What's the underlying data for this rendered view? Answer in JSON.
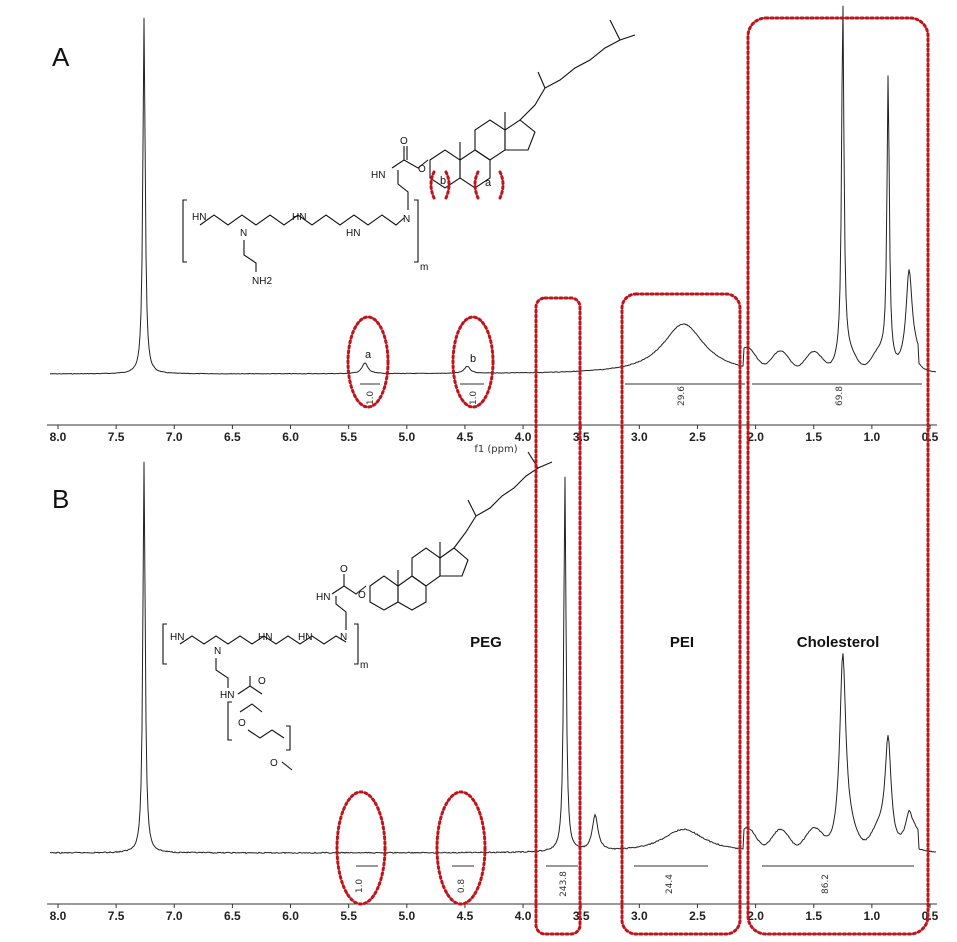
{
  "panels": [
    {
      "letter": "A",
      "axis_title": "f1 (ppm)",
      "integrals": [
        "1.0",
        "1.0",
        "29.6",
        "69.8"
      ],
      "peak_letters": [
        "a",
        "b"
      ],
      "structure_text": [
        "HN",
        "N",
        "HN",
        "HN",
        "N",
        "O",
        "O",
        "HN",
        "NH2",
        "m",
        "a",
        "b"
      ]
    },
    {
      "letter": "B",
      "integrals": [
        "1.0",
        "0.8",
        "243.8",
        "24.4",
        "86.2"
      ],
      "region_labels": [
        "PEG",
        "PEI",
        "Cholesterol"
      ],
      "structure_text": [
        "HN",
        "N",
        "HN",
        "HN",
        "N",
        "O",
        "O",
        "HN",
        "O",
        "O",
        "O",
        "HN",
        "m"
      ]
    }
  ],
  "colors": {
    "highlight": "#c0141a",
    "trace": "#222222"
  },
  "chart_data": [
    {
      "type": "line",
      "title": "",
      "xlabel": "f1 (ppm)",
      "ylabel": "",
      "xlim": [
        8.0,
        0.5
      ],
      "x_reversed": true,
      "ticks": [
        "8.0",
        "7.5",
        "7.0",
        "6.5",
        "6.0",
        "5.5",
        "5.0",
        "4.5",
        "4.0",
        "3.5",
        "3.0",
        "2.5",
        "2.0",
        "1.5",
        "1.0",
        "0.5"
      ],
      "peaks": [
        {
          "ppm": 7.26,
          "intensity": 1.0
        },
        {
          "ppm": 5.36,
          "intensity": 0.03
        },
        {
          "ppm": 4.48,
          "intensity": 0.02
        },
        {
          "ppm": 2.62,
          "intensity": 0.14
        },
        {
          "ppm": 1.25,
          "intensity": 1.0
        },
        {
          "ppm": 0.86,
          "intensity": 0.8
        },
        {
          "ppm": 0.68,
          "intensity": 0.24
        }
      ],
      "integral_values": [
        {
          "range": [
            5.45,
            5.25
          ],
          "value": 1.0
        },
        {
          "range": [
            4.6,
            4.35
          ],
          "value": 1.0
        },
        {
          "range": [
            3.15,
            2.1
          ],
          "value": 29.6
        },
        {
          "range": [
            2.1,
            0.55
          ],
          "value": 69.8
        }
      ]
    },
    {
      "type": "line",
      "title": "",
      "xlabel": "",
      "ylabel": "",
      "xlim": [
        8.0,
        0.5
      ],
      "x_reversed": true,
      "ticks": [
        "8.0",
        "7.5",
        "7.0",
        "6.5",
        "6.0",
        "5.5",
        "5.0",
        "4.5",
        "4.0",
        "3.5",
        "3.0",
        "2.5",
        "2.0",
        "1.5",
        "1.0",
        "0.5"
      ],
      "peaks": [
        {
          "ppm": 7.26,
          "intensity": 1.0
        },
        {
          "ppm": 3.64,
          "intensity": 0.96
        },
        {
          "ppm": 3.38,
          "intensity": 0.09
        },
        {
          "ppm": 2.62,
          "intensity": 0.06
        },
        {
          "ppm": 1.25,
          "intensity": 0.46
        },
        {
          "ppm": 0.86,
          "intensity": 0.26
        },
        {
          "ppm": 0.68,
          "intensity": 0.05
        }
      ],
      "integral_values": [
        {
          "range": [
            5.45,
            5.3
          ],
          "value": 1.0
        },
        {
          "range": [
            4.55,
            4.45
          ],
          "value": 0.8
        },
        {
          "range": [
            3.75,
            3.55
          ],
          "value": 243.8
        },
        {
          "range": [
            3.0,
            2.3
          ],
          "value": 24.4
        },
        {
          "range": [
            1.95,
            0.6
          ],
          "value": 86.2
        }
      ]
    }
  ]
}
